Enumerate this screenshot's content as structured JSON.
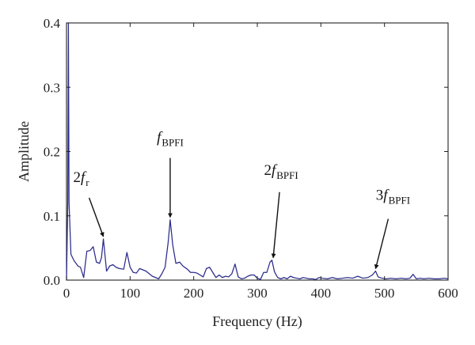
{
  "chart_data": {
    "type": "line",
    "title": "",
    "xlabel": "Frequency (Hz)",
    "ylabel": "Amplitude",
    "xlim": [
      0,
      600
    ],
    "ylim": [
      0,
      0.4
    ],
    "xticks": [
      "0",
      "100",
      "200",
      "300",
      "400",
      "500",
      "600"
    ],
    "yticks": [
      "0.0",
      "0.1",
      "0.2",
      "0.3",
      "0.4"
    ],
    "grid": false,
    "line_color": "#2b2b8c",
    "series": [
      {
        "x": [
          0,
          2,
          3,
          4,
          7,
          12,
          18,
          22,
          27,
          32,
          37,
          42,
          47,
          52,
          55,
          58,
          63,
          68,
          73,
          78,
          83,
          90,
          95,
          100,
          105,
          110,
          115,
          120,
          125,
          130,
          135,
          140,
          145,
          150,
          155,
          160,
          163,
          167,
          172,
          178,
          183,
          190,
          195,
          200,
          205,
          210,
          215,
          220,
          225,
          230,
          235,
          240,
          245,
          250,
          255,
          260,
          265,
          270,
          275,
          280,
          285,
          290,
          295,
          300,
          305,
          310,
          315,
          320,
          323,
          327,
          332,
          337,
          342,
          347,
          352,
          357,
          362,
          367,
          372,
          377,
          382,
          387,
          392,
          397,
          402,
          410,
          418,
          426,
          434,
          442,
          450,
          458,
          466,
          474,
          481,
          486,
          490,
          496,
          502,
          510,
          518,
          526,
          534,
          540,
          545,
          550,
          556,
          562,
          570,
          578,
          586,
          594,
          600
        ],
        "y": [
          0.0,
          0.12,
          0.4,
          0.12,
          0.04,
          0.03,
          0.022,
          0.02,
          0.004,
          0.045,
          0.046,
          0.052,
          0.028,
          0.026,
          0.035,
          0.064,
          0.014,
          0.022,
          0.024,
          0.02,
          0.018,
          0.017,
          0.043,
          0.02,
          0.012,
          0.011,
          0.018,
          0.016,
          0.014,
          0.01,
          0.006,
          0.004,
          0.002,
          0.01,
          0.02,
          0.06,
          0.094,
          0.055,
          0.026,
          0.028,
          0.022,
          0.017,
          0.012,
          0.012,
          0.011,
          0.008,
          0.005,
          0.018,
          0.02,
          0.012,
          0.004,
          0.008,
          0.004,
          0.006,
          0.005,
          0.01,
          0.025,
          0.005,
          0.002,
          0.003,
          0.006,
          0.008,
          0.008,
          0.003,
          0.001,
          0.012,
          0.012,
          0.028,
          0.031,
          0.013,
          0.004,
          0.002,
          0.004,
          0.002,
          0.006,
          0.004,
          0.003,
          0.002,
          0.004,
          0.003,
          0.002,
          0.002,
          0.001,
          0.004,
          0.003,
          0.002,
          0.004,
          0.002,
          0.003,
          0.004,
          0.003,
          0.006,
          0.003,
          0.004,
          0.008,
          0.014,
          0.005,
          0.003,
          0.002,
          0.003,
          0.002,
          0.003,
          0.002,
          0.003,
          0.009,
          0.002,
          0.003,
          0.002,
          0.003,
          0.002,
          0.002,
          0.003,
          0.002
        ]
      }
    ],
    "annotations": [
      {
        "base": "2",
        "symbol": "f",
        "sub": "r",
        "x": 58,
        "y": 0.064
      },
      {
        "base": "",
        "symbol": "f",
        "sub": "BPFI",
        "x": 163,
        "y": 0.094
      },
      {
        "base": "2",
        "symbol": "f",
        "sub": "BPFI",
        "x": 325,
        "y": 0.031
      },
      {
        "base": "3",
        "symbol": "f",
        "sub": "BPFI",
        "x": 486,
        "y": 0.014
      }
    ]
  }
}
